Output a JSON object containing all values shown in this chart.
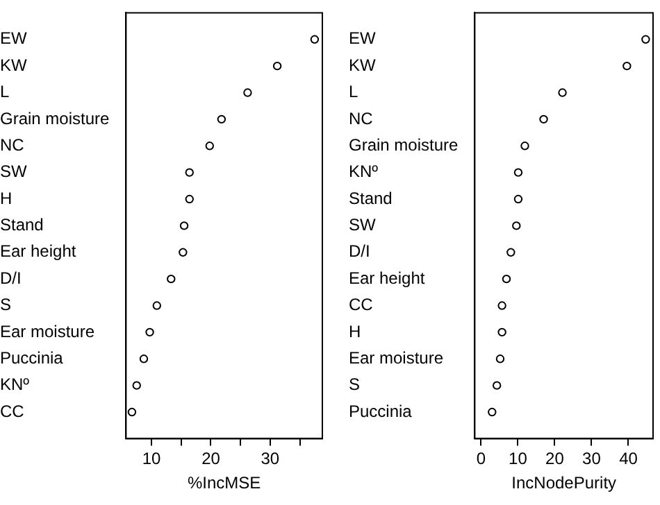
{
  "chart_data": [
    {
      "type": "scatter",
      "orientation": "horizontal",
      "marker": "circle",
      "grid": false,
      "legend": false,
      "xlabel": "%IncMSE",
      "categories": [
        "EW",
        "KW",
        "L",
        "Grain moisture",
        "NC",
        "SW",
        "H",
        "Stand",
        "Ear height",
        "D/I",
        "S",
        "Ear moisture",
        "Puccinia",
        "KNº",
        "CC"
      ],
      "series": [
        {
          "color": "#000000",
          "values": [
            37.5,
            31.2,
            26.2,
            21.8,
            19.8,
            16.4,
            16.4,
            15.5,
            15.3,
            13.3,
            10.9,
            9.7,
            8.7,
            7.5,
            6.7
          ]
        }
      ],
      "xlim": [
        5.7,
        38.8
      ],
      "xticks": [
        10,
        {
          "value": 15,
          "label": null
        },
        20,
        {
          "value": 25,
          "label": null
        },
        30,
        {
          "value": 35,
          "label": null
        }
      ]
    },
    {
      "type": "scatter",
      "orientation": "horizontal",
      "marker": "circle",
      "grid": false,
      "legend": false,
      "xlabel": "IncNodePurity",
      "categories": [
        "EW",
        "KW",
        "L",
        "NC",
        "Grain moisture",
        "KNº",
        "Stand",
        "SW",
        "D/I",
        "Ear height",
        "CC",
        "H",
        "Ear moisture",
        "S",
        "Puccinia"
      ],
      "series": [
        {
          "color": "#000000",
          "values": [
            44.7,
            39.6,
            22.1,
            17.0,
            11.9,
            10.1,
            10.1,
            9.6,
            8.1,
            6.9,
            5.7,
            5.7,
            5.2,
            4.3,
            3.0
          ]
        }
      ],
      "xlim": [
        -1.7,
        46.7
      ],
      "xticks": [
        0,
        10,
        20,
        30,
        40
      ]
    }
  ]
}
